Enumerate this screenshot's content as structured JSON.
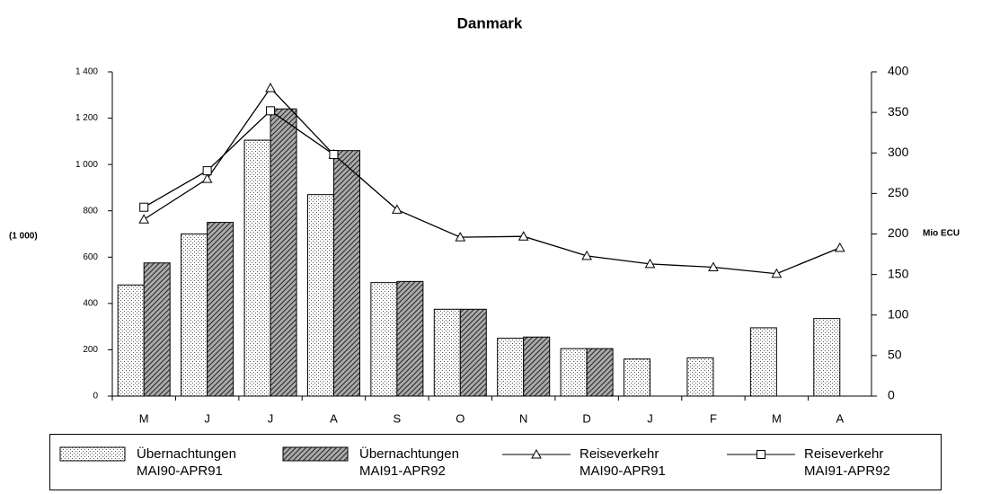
{
  "chart_data": {
    "type": "bar-line",
    "title": "Danmark",
    "ylabel": "(1 000)",
    "y2label": "Mio ECU",
    "categories": [
      "M",
      "J",
      "J",
      "A",
      "S",
      "O",
      "N",
      "D",
      "J",
      "F",
      "M",
      "A"
    ],
    "ylim": [
      0,
      1400
    ],
    "yticks": [
      0,
      200,
      400,
      600,
      800,
      {
        "value": 1000,
        "label": "1 000"
      },
      {
        "value": 1200,
        "label": "1 200"
      },
      {
        "value": 1400,
        "label": "1 400"
      }
    ],
    "y2lim": [
      0,
      400
    ],
    "y2ticks": [
      0,
      50,
      100,
      150,
      200,
      250,
      300,
      350,
      400
    ],
    "series": [
      {
        "name": "Übernachtungen MAI90-APR91",
        "kind": "bar",
        "pattern": "dots",
        "color": "#000000",
        "values": [
          480,
          700,
          1105,
          870,
          490,
          375,
          250,
          205,
          160,
          165,
          295,
          335
        ]
      },
      {
        "name": "Übernachtungen MAI91-APR92",
        "kind": "bar",
        "pattern": "hatch",
        "color": "#000000",
        "values": [
          575,
          750,
          1240,
          1060,
          495,
          375,
          255,
          205,
          null,
          null,
          null,
          null
        ]
      },
      {
        "name": "Reiseverkehr MAI90-APR91",
        "kind": "line",
        "marker": "triangle",
        "axis": "y2",
        "color": "#000000",
        "values": [
          218,
          268,
          380,
          298,
          230,
          196,
          197,
          173,
          163,
          159,
          151,
          183
        ]
      },
      {
        "name": "Reiseverkehr MAI91-APR92",
        "kind": "line",
        "marker": "square",
        "axis": "y2",
        "color": "#000000",
        "values": [
          233,
          278,
          352,
          298,
          null,
          null,
          null,
          null,
          null,
          null,
          null,
          null
        ]
      }
    ]
  }
}
